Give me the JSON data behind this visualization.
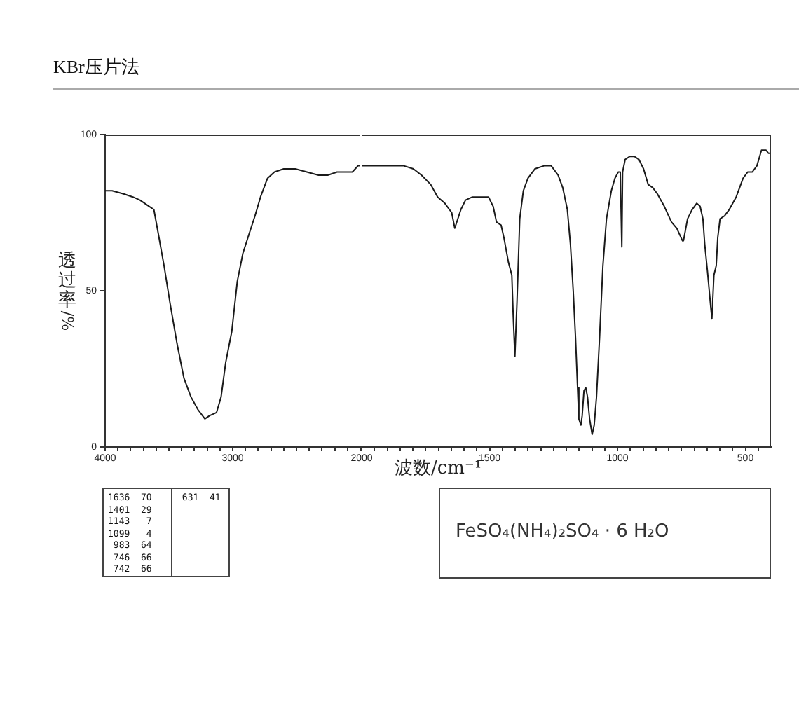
{
  "chart_data": [
    {
      "type": "line",
      "title": "KBr压片法",
      "ylabel": "透过率/%",
      "x": [
        4000,
        3945,
        3855,
        3782,
        3727,
        3655,
        3618,
        3582,
        3538,
        3491,
        3436,
        3382,
        3327,
        3273,
        3218,
        3182,
        3127,
        3091,
        3055,
        3007,
        2964,
        2920,
        2873,
        2825,
        2782,
        2727,
        2673,
        2600,
        2509,
        2418,
        2327,
        2255,
        2182,
        2091,
        2062,
        2018,
        2000
      ],
      "series": [
        {
          "color": "#1a1a1a",
          "values": [
            82,
            82,
            81,
            80,
            79,
            77,
            76,
            68,
            58,
            46,
            33,
            22,
            16,
            12,
            9,
            10,
            11,
            16,
            27,
            37,
            53,
            62,
            68,
            74,
            80,
            86,
            88,
            89,
            89,
            88,
            87,
            87,
            88,
            88,
            88,
            90,
            90
          ]
        }
      ],
      "xlim": [
        4000,
        2000
      ],
      "xticks": [
        4000,
        {
          "value": 3900,
          "label": null
        },
        {
          "value": 3800,
          "label": null
        },
        {
          "value": 3700,
          "label": null
        },
        {
          "value": 3600,
          "label": null
        },
        {
          "value": 3500,
          "label": null
        },
        {
          "value": 3400,
          "label": null
        },
        {
          "value": 3300,
          "label": null
        },
        {
          "value": 3200,
          "label": null
        },
        {
          "value": 3100,
          "label": null
        },
        3000,
        {
          "value": 2900,
          "label": null
        },
        {
          "value": 2800,
          "label": null
        },
        {
          "value": 2700,
          "label": null
        },
        {
          "value": 2600,
          "label": null
        },
        {
          "value": 2500,
          "label": null
        },
        {
          "value": 2400,
          "label": null
        },
        {
          "value": 2300,
          "label": null
        },
        {
          "value": 2200,
          "label": null
        },
        {
          "value": 2100,
          "label": null
        },
        {
          "value": 2000,
          "label": null
        }
      ],
      "ylim": [
        0,
        100
      ],
      "yticks": [
        0,
        50,
        100
      ]
    },
    {
      "type": "line",
      "xlabel": "波数/cm⁻¹",
      "x": [
        2000,
        1972,
        1881,
        1835,
        1798,
        1766,
        1730,
        1703,
        1675,
        1648,
        1636,
        1612,
        1594,
        1567,
        1531,
        1504,
        1486,
        1473,
        1455,
        1444,
        1426,
        1413,
        1408,
        1401,
        1393,
        1382,
        1368,
        1350,
        1323,
        1287,
        1259,
        1232,
        1214,
        1196,
        1184,
        1173,
        1164,
        1156,
        1151,
        1143,
        1138,
        1131,
        1124,
        1117,
        1109,
        1099,
        1091,
        1082,
        1070,
        1057,
        1043,
        1024,
        1010,
        997,
        989,
        983,
        980,
        970,
        952,
        934,
        916,
        898,
        880,
        862,
        844,
        817,
        789,
        768,
        746,
        742,
        726,
        708,
        690,
        677,
        666,
        659,
        648,
        639,
        631,
        623,
        614,
        608,
        599,
        581,
        563,
        536,
        509,
        491,
        473,
        455,
        437,
        428,
        419,
        410,
        400
      ],
      "series": [
        {
          "color": "#1a1a1a",
          "values": [
            90,
            90,
            90,
            90,
            89,
            87,
            84,
            80,
            78,
            75,
            70,
            76,
            79,
            80,
            80,
            80,
            77,
            72,
            71,
            67,
            59,
            55,
            43,
            29,
            46,
            73,
            82,
            86,
            89,
            90,
            90,
            87,
            83,
            76,
            65,
            50,
            35,
            19,
            9,
            7,
            10,
            18,
            19,
            16,
            9,
            4,
            7,
            16,
            35,
            58,
            73,
            82,
            86,
            88,
            88,
            64,
            88,
            92,
            93,
            93,
            92,
            89,
            84,
            83,
            81,
            77,
            72,
            70,
            66,
            66,
            73,
            76,
            78,
            77,
            73,
            65,
            56,
            48,
            41,
            55,
            58,
            67,
            73,
            74,
            76,
            80,
            86,
            88,
            88,
            90,
            95,
            95,
            95,
            94,
            94
          ]
        }
      ],
      "xlim": [
        2000,
        400
      ],
      "xticks": [
        2000,
        {
          "value": 1950,
          "label": null
        },
        {
          "value": 1900,
          "label": null
        },
        {
          "value": 1850,
          "label": null
        },
        {
          "value": 1800,
          "label": null
        },
        {
          "value": 1750,
          "label": null
        },
        {
          "value": 1700,
          "label": null
        },
        {
          "value": 1650,
          "label": null
        },
        {
          "value": 1600,
          "label": null
        },
        {
          "value": 1550,
          "label": null
        },
        1500,
        {
          "value": 1450,
          "label": null
        },
        {
          "value": 1400,
          "label": null
        },
        {
          "value": 1350,
          "label": null
        },
        {
          "value": 1300,
          "label": null
        },
        {
          "value": 1250,
          "label": null
        },
        {
          "value": 1200,
          "label": null
        },
        {
          "value": 1150,
          "label": null
        },
        {
          "value": 1100,
          "label": null
        },
        {
          "value": 1050,
          "label": null
        },
        1000,
        {
          "value": 950,
          "label": null
        },
        {
          "value": 900,
          "label": null
        },
        {
          "value": 850,
          "label": null
        },
        {
          "value": 800,
          "label": null
        },
        {
          "value": 750,
          "label": null
        },
        {
          "value": 700,
          "label": null
        },
        {
          "value": 650,
          "label": null
        },
        {
          "value": 600,
          "label": null
        },
        {
          "value": 550,
          "label": null
        },
        500,
        {
          "value": 450,
          "label": null
        }
      ],
      "ylim": [
        0,
        100
      ],
      "tick_labels": "x",
      "annotations": [
        "1636 70",
        "1401 29",
        "1143 7",
        "1099 4",
        "983 64",
        "746 66",
        "742 66",
        "631 41",
        "FeSO₄(NH₄)₂SO₄ · 6 H₂O"
      ]
    }
  ]
}
